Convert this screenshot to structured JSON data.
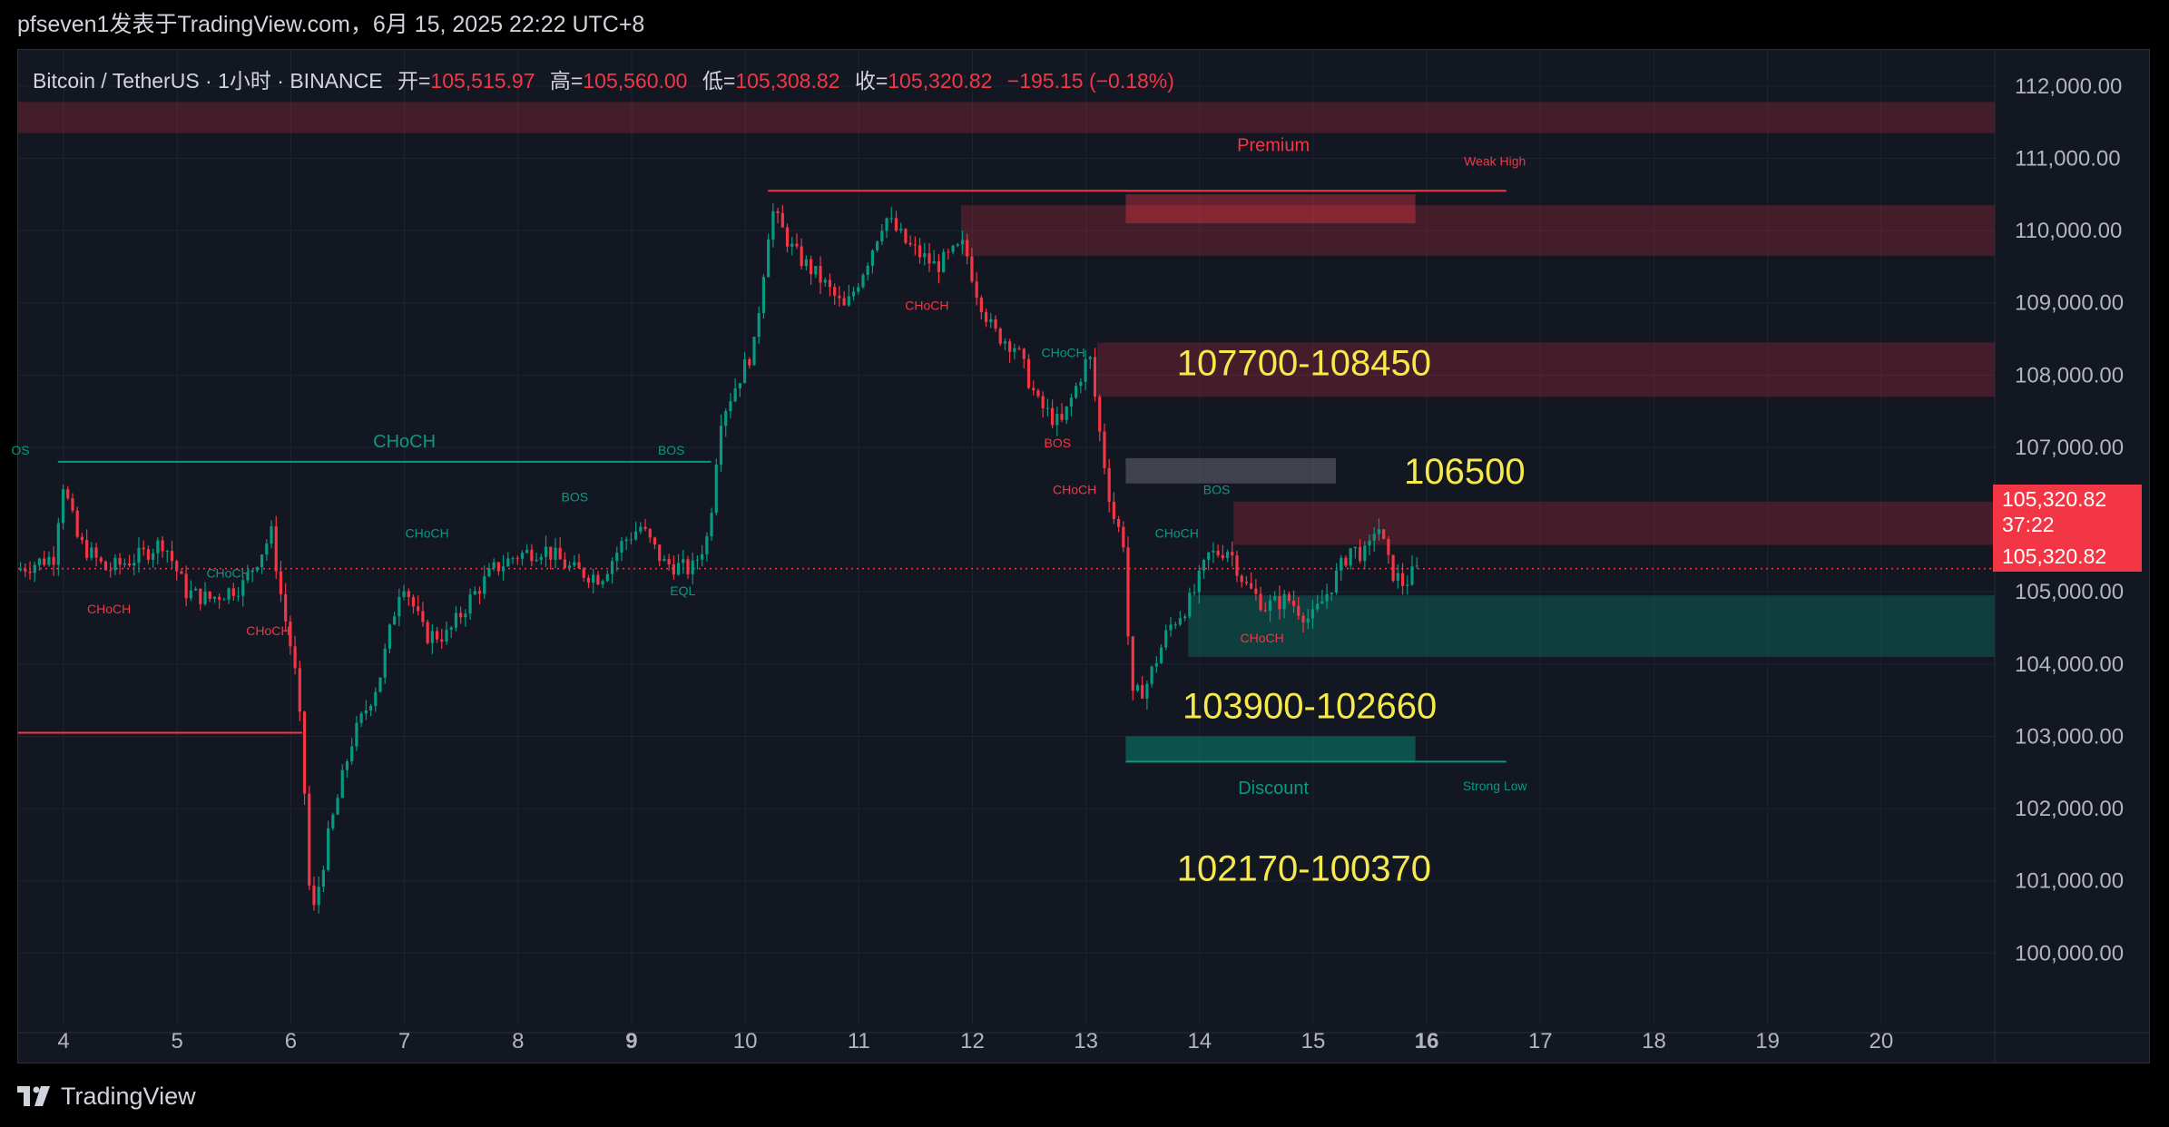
{
  "header": {
    "publish_line": "pfseven1发表于TradingView.com，6月 15, 2025 22:22 UTC+8"
  },
  "legend": {
    "symbol": "Bitcoin / TetherUS · 1小时 · BINANCE",
    "open_label": "开=",
    "open_value": "105,515.97",
    "high_label": "高=",
    "high_value": "105,560.00",
    "low_label": "低=",
    "low_value": "105,308.82",
    "close_label": "收=",
    "close_value": "105,320.82",
    "change": "−195.15 (−0.18%)"
  },
  "price_scale": {
    "last_price": "105,320.82",
    "countdown": "37:22",
    "last_price_bottom": "105,320.82"
  },
  "footer": {
    "brand": "TradingView"
  },
  "colors": {
    "background": "#131722",
    "up": "#089981",
    "down": "#f23645",
    "annotation_text": "#f5e94b",
    "premium_zone": "#5c2d36",
    "discount_zone": "#1f4a4a"
  },
  "chart_data": {
    "type": "candlestick",
    "title": "Bitcoin / TetherUS · 1小时 · BINANCE",
    "xlabel": "",
    "ylabel": "",
    "ylim": [
      99000,
      112500
    ],
    "y_ticks": [
      "112,000.00",
      "111,000.00",
      "110,000.00",
      "109,000.00",
      "108,000.00",
      "107,000.00",
      "105,000.00",
      "104,000.00",
      "103,000.00",
      "102,000.00",
      "101,000.00",
      "100,000.00"
    ],
    "y_tick_values": [
      112000,
      111000,
      110000,
      109000,
      108000,
      107000,
      105000,
      104000,
      103000,
      102000,
      101000,
      100000
    ],
    "x_ticks": [
      "4",
      "5",
      "6",
      "7",
      "8",
      "9",
      "10",
      "11",
      "12",
      "13",
      "14",
      "15",
      "16",
      "17",
      "18",
      "19",
      "20"
    ],
    "x_tick_values": [
      4,
      5,
      6,
      7,
      8,
      9,
      10,
      11,
      12,
      13,
      14,
      15,
      16,
      17,
      18,
      19,
      20
    ],
    "bold_x_ticks": [
      "9",
      "16"
    ],
    "xlim": [
      3.6,
      21.0
    ],
    "price_path": [
      [
        3.6,
        105300
      ],
      [
        3.95,
        105500
      ],
      [
        4.0,
        106600
      ],
      [
        4.15,
        105700
      ],
      [
        4.4,
        105300
      ],
      [
        4.7,
        105500
      ],
      [
        4.9,
        105700
      ],
      [
        5.1,
        105000
      ],
      [
        5.3,
        104900
      ],
      [
        5.6,
        105100
      ],
      [
        5.85,
        105800
      ],
      [
        5.95,
        104800
      ],
      [
        6.05,
        104000
      ],
      [
        6.12,
        102900
      ],
      [
        6.2,
        100400
      ],
      [
        6.35,
        101600
      ],
      [
        6.55,
        102900
      ],
      [
        6.8,
        103800
      ],
      [
        7.0,
        105200
      ],
      [
        7.2,
        104400
      ],
      [
        7.4,
        104400
      ],
      [
        7.6,
        104900
      ],
      [
        7.8,
        105300
      ],
      [
        8.0,
        105500
      ],
      [
        8.25,
        105600
      ],
      [
        8.5,
        105300
      ],
      [
        8.75,
        105200
      ],
      [
        8.95,
        105700
      ],
      [
        9.1,
        105900
      ],
      [
        9.3,
        105400
      ],
      [
        9.55,
        105300
      ],
      [
        9.7,
        105800
      ],
      [
        9.8,
        107400
      ],
      [
        9.95,
        107900
      ],
      [
        10.1,
        108400
      ],
      [
        10.25,
        110300
      ],
      [
        10.45,
        109700
      ],
      [
        10.7,
        109300
      ],
      [
        10.9,
        108900
      ],
      [
        11.1,
        109600
      ],
      [
        11.25,
        110200
      ],
      [
        11.45,
        109800
      ],
      [
        11.7,
        109500
      ],
      [
        11.95,
        109800
      ],
      [
        12.05,
        109200
      ],
      [
        12.2,
        108600
      ],
      [
        12.4,
        108400
      ],
      [
        12.6,
        107600
      ],
      [
        12.8,
        107300
      ],
      [
        12.95,
        107900
      ],
      [
        13.05,
        108300
      ],
      [
        13.15,
        107100
      ],
      [
        13.25,
        106100
      ],
      [
        13.35,
        105700
      ],
      [
        13.42,
        103500
      ],
      [
        13.55,
        103700
      ],
      [
        13.75,
        104500
      ],
      [
        13.95,
        104900
      ],
      [
        14.1,
        105500
      ],
      [
        14.28,
        105600
      ],
      [
        14.42,
        105100
      ],
      [
        14.6,
        104800
      ],
      [
        14.8,
        104900
      ],
      [
        15.0,
        104600
      ],
      [
        15.15,
        105000
      ],
      [
        15.35,
        105600
      ],
      [
        15.5,
        105500
      ],
      [
        15.58,
        106000
      ],
      [
        15.7,
        105300
      ],
      [
        15.82,
        105100
      ],
      [
        15.92,
        105300
      ]
    ],
    "zones": [
      {
        "label": "",
        "kind": "premium",
        "x0": 3.6,
        "x1": 21.0,
        "y0": 111350,
        "y1": 111780
      },
      {
        "label": "",
        "kind": "premium",
        "x0": 11.9,
        "x1": 21.0,
        "y0": 109650,
        "y1": 110350
      },
      {
        "label": "",
        "kind": "premium-core",
        "x0": 13.35,
        "x1": 15.9,
        "y0": 110100,
        "y1": 110500
      },
      {
        "label": "",
        "kind": "premium",
        "x0": 13.1,
        "x1": 21.0,
        "y0": 107700,
        "y1": 108450
      },
      {
        "label": "",
        "kind": "premium",
        "x0": 14.3,
        "x1": 21.0,
        "y0": 105650,
        "y1": 106250
      },
      {
        "label": "",
        "kind": "neutral",
        "x0": 13.35,
        "x1": 15.2,
        "y0": 106500,
        "y1": 106850
      },
      {
        "label": "",
        "kind": "discount",
        "x0": 13.9,
        "x1": 21.0,
        "y0": 104100,
        "y1": 104950
      },
      {
        "label": "",
        "kind": "discount-core",
        "x0": 13.35,
        "x1": 15.9,
        "y0": 102650,
        "y1": 103000
      }
    ],
    "lines": [
      {
        "label": "Weak High",
        "color": "#f23645",
        "x0": 10.2,
        "x1": 16.7,
        "y": 110550
      },
      {
        "label": "Strong Low",
        "color": "#089981",
        "x0": 13.35,
        "x1": 16.7,
        "y": 102650
      },
      {
        "label": "CHoCH",
        "color": "#089981",
        "x0": 3.95,
        "x1": 9.7,
        "y": 106800
      },
      {
        "label": "",
        "color": "#f23645",
        "x0": 3.6,
        "x1": 6.1,
        "y": 103050
      }
    ],
    "annotations": [
      {
        "text": "107700-108450",
        "x": 13.8,
        "y": 108000,
        "color": "#f5e94b",
        "size": "large"
      },
      {
        "text": "106500",
        "x": 15.8,
        "y": 106500,
        "color": "#f5e94b",
        "size": "large"
      },
      {
        "text": "103900-102660",
        "x": 13.85,
        "y": 103250,
        "color": "#f5e94b",
        "size": "large"
      },
      {
        "text": "102170-100370",
        "x": 13.8,
        "y": 101000,
        "color": "#f5e94b",
        "size": "large"
      },
      {
        "text": "Premium",
        "x": 14.65,
        "y": 111100,
        "color": "#f23645",
        "size": "small"
      },
      {
        "text": "Discount",
        "x": 14.65,
        "y": 102200,
        "color": "#089981",
        "size": "small"
      },
      {
        "text": "Weak High",
        "x": 16.6,
        "y": 110900,
        "color": "#f23645",
        "size": "tiny"
      },
      {
        "text": "Strong Low",
        "x": 16.6,
        "y": 102250,
        "color": "#089981",
        "size": "tiny"
      },
      {
        "text": "CHoCH",
        "x": 7.0,
        "y": 107000,
        "color": "#089981",
        "size": "small"
      },
      {
        "text": "OS",
        "x": 3.62,
        "y": 106900,
        "color": "#089981",
        "size": "tiny"
      },
      {
        "text": "CHoCH",
        "x": 4.4,
        "y": 104700,
        "color": "#f23645",
        "size": "tiny"
      },
      {
        "text": "CHoCH",
        "x": 5.45,
        "y": 105200,
        "color": "#089981",
        "size": "tiny"
      },
      {
        "text": "CHoCH",
        "x": 5.8,
        "y": 104400,
        "color": "#f23645",
        "size": "tiny"
      },
      {
        "text": "CHoCH",
        "x": 7.2,
        "y": 105750,
        "color": "#089981",
        "size": "tiny"
      },
      {
        "text": "BOS",
        "x": 8.5,
        "y": 106250,
        "color": "#089981",
        "size": "tiny"
      },
      {
        "text": "BOS",
        "x": 9.35,
        "y": 106900,
        "color": "#089981",
        "size": "tiny"
      },
      {
        "text": "EQL",
        "x": 9.45,
        "y": 104950,
        "color": "#089981",
        "size": "tiny"
      },
      {
        "text": "CHoCH",
        "x": 11.6,
        "y": 108900,
        "color": "#f23645",
        "size": "tiny"
      },
      {
        "text": "CHoCH",
        "x": 12.8,
        "y": 108250,
        "color": "#089981",
        "size": "tiny"
      },
      {
        "text": "BOS",
        "x": 12.75,
        "y": 107000,
        "color": "#f23645",
        "size": "tiny"
      },
      {
        "text": "CHoCH",
        "x": 12.9,
        "y": 106350,
        "color": "#f23645",
        "size": "tiny"
      },
      {
        "text": "BOS",
        "x": 14.15,
        "y": 106350,
        "color": "#089981",
        "size": "tiny"
      },
      {
        "text": "CHoCH",
        "x": 13.8,
        "y": 105750,
        "color": "#089981",
        "size": "tiny"
      },
      {
        "text": "CHoCH",
        "x": 14.55,
        "y": 104300,
        "color": "#f23645",
        "size": "tiny"
      }
    ],
    "last_price": 105320.82,
    "grid": true,
    "legend_position": "top-left"
  }
}
